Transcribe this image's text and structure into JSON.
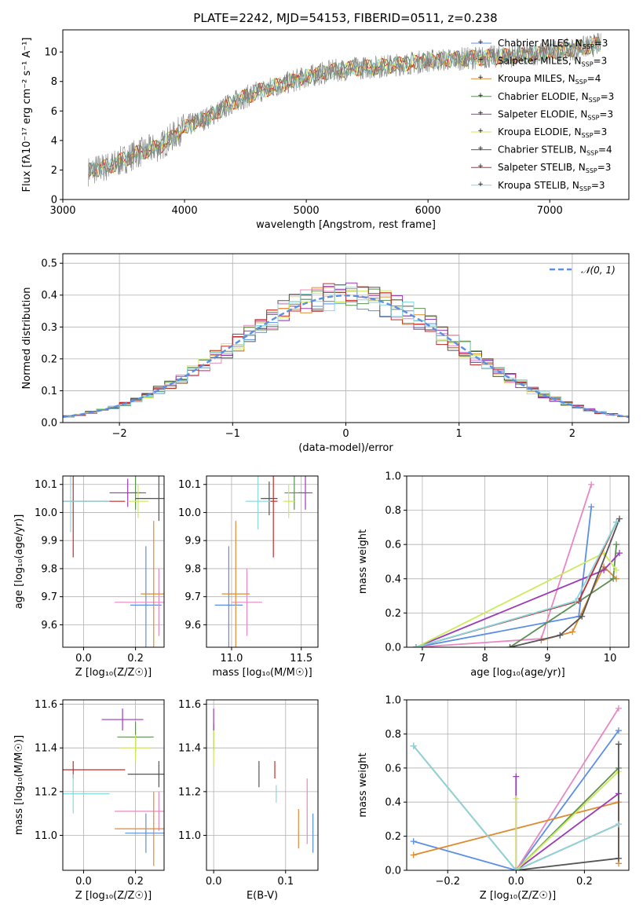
{
  "title": "PLATE=2242, MJD=54153, FIBERID=0511, z=0.238",
  "colors": {
    "chabrier_miles": "#5b8ee6",
    "salpeter_miles": "#e887c4",
    "kroupa_miles": "#e08a2e",
    "chabrier_elodie": "#5c8f52",
    "salpeter_elodie": "#9b3bb7",
    "kroupa_elodie": "#cdea5a",
    "chabrier_stelib": "#555555",
    "salpeter_stelib": "#c42b2b",
    "kroupa_stelib": "#86d9dd",
    "data": "#808080"
  },
  "legend": [
    {
      "label": "Chabrier MILES, N",
      "sub": "SSP",
      "tail": "=3",
      "color": "chabrier_miles"
    },
    {
      "label": "Salpeter MILES, N",
      "sub": "SSP",
      "tail": "=3",
      "color": "salpeter_miles"
    },
    {
      "label": "Kroupa MILES, N",
      "sub": "SSP",
      "tail": "=4",
      "color": "kroupa_miles"
    },
    {
      "label": "Chabrier ELODIE, N",
      "sub": "SSP",
      "tail": "=3",
      "color": "chabrier_elodie"
    },
    {
      "label": "Salpeter ELODIE, N",
      "sub": "SSP",
      "tail": "=3",
      "color": "salpeter_elodie"
    },
    {
      "label": "Kroupa ELODIE, N",
      "sub": "SSP",
      "tail": "=3",
      "color": "kroupa_elodie"
    },
    {
      "label": "Chabrier STELIB, N",
      "sub": "SSP",
      "tail": "=4",
      "color": "chabrier_stelib"
    },
    {
      "label": "Salpeter STELIB, N",
      "sub": "SSP",
      "tail": "=3",
      "color": "salpeter_stelib"
    },
    {
      "label": "Kroupa STELIB, N",
      "sub": "SSP",
      "tail": "=3",
      "color": "kroupa_stelib"
    }
  ],
  "chart_data": [
    {
      "type": "line",
      "title": "PLATE=2242, MJD=54153, FIBERID=0511, z=0.238",
      "xlabel": "wavelength [Angstrom, rest frame]",
      "ylabel": "Flux [fλ10⁻¹⁷ erg cm⁻² s⁻¹ A⁻¹]",
      "xlim": [
        3000,
        7650
      ],
      "ylim": [
        0,
        11.5
      ],
      "xticks": [
        "3000",
        "4000",
        "5000",
        "6000",
        "7000"
      ],
      "yticks": [
        "0",
        "2",
        "4",
        "6",
        "8",
        "10"
      ],
      "x": [
        3200,
        3400,
        3600,
        3800,
        4000,
        4200,
        4400,
        4600,
        4800,
        5000,
        5200,
        5400,
        5600,
        5800,
        6000,
        6200,
        6400,
        6600,
        6800,
        7000,
        7200,
        7400
      ],
      "y": [
        1.9,
        2.3,
        3.1,
        3.6,
        4.9,
        5.6,
        6.6,
        7.3,
        7.8,
        8.3,
        8.7,
        8.9,
        9.0,
        9.2,
        9.4,
        9.5,
        9.6,
        9.7,
        9.8,
        10.0,
        10.2,
        10.5
      ]
    },
    {
      "type": "line",
      "xlabel": "(data-model)/error",
      "ylabel": "Normed distribution",
      "xlim": [
        -2.5,
        2.5
      ],
      "ylim": [
        0,
        0.53
      ],
      "xticks": [
        "−2",
        "−1",
        "0",
        "1",
        "2"
      ],
      "yticks": [
        "0.0",
        "0.1",
        "0.2",
        "0.3",
        "0.4",
        "0.5"
      ],
      "legend": "𝒩(0, 1)",
      "x": [
        -2.5,
        -2.0,
        -1.5,
        -1.0,
        -0.5,
        0.0,
        0.5,
        1.0,
        1.5,
        2.0,
        2.5
      ],
      "gauss": [
        0.018,
        0.054,
        0.13,
        0.242,
        0.352,
        0.399,
        0.352,
        0.242,
        0.13,
        0.054,
        0.018
      ]
    },
    {
      "type": "scatter",
      "xlabel": "Z [log₁₀(Z/Z☉)]",
      "ylabel": "age  [log₁₀(age/yr)]",
      "xlim": [
        -0.08,
        0.31
      ],
      "ylim": [
        9.52,
        10.13
      ],
      "xticks": [
        "0.0",
        "0.2"
      ],
      "yticks": [
        "9.6",
        "9.7",
        "9.8",
        "9.9",
        "10.0",
        "10.1"
      ],
      "points": [
        {
          "x": 0.24,
          "y": 9.67,
          "xe": 0.06,
          "ye": 0.21,
          "c": "chabrier_miles"
        },
        {
          "x": 0.29,
          "y": 9.68,
          "xe": 0.17,
          "ye": 0.12,
          "c": "salpeter_miles"
        },
        {
          "x": 0.27,
          "y": 9.71,
          "xe": 0.05,
          "ye": 0.26,
          "c": "kroupa_miles"
        },
        {
          "x": 0.2,
          "y": 10.07,
          "xe": 0.02,
          "ye": 0.06,
          "c": "chabrier_elodie"
        },
        {
          "x": 0.17,
          "y": 10.07,
          "xe": 0.07,
          "ye": 0.05,
          "c": "salpeter_elodie"
        },
        {
          "x": 0.21,
          "y": 10.04,
          "xe": 0.04,
          "ye": 0.06,
          "c": "kroupa_elodie"
        },
        {
          "x": 0.29,
          "y": 10.05,
          "xe": 0.09,
          "ye": 0.08,
          "c": "chabrier_stelib"
        },
        {
          "x": -0.04,
          "y": 10.04,
          "xe": 0.2,
          "ye": 0.2,
          "c": "salpeter_stelib"
        },
        {
          "x": -0.05,
          "y": 10.04,
          "xe": 0.15,
          "ye": 0.11,
          "c": "kroupa_stelib"
        }
      ]
    },
    {
      "type": "scatter",
      "xlabel": "mass [log₁₀(M/M☉)]",
      "xlim": [
        10.82,
        11.62
      ],
      "ylim": [
        9.52,
        10.13
      ],
      "xticks": [
        "11.0",
        "11.5"
      ],
      "yticks": [
        "9.6",
        "9.7",
        "9.8",
        "9.9",
        "10.0",
        "10.1"
      ],
      "points": [
        {
          "x": 10.98,
          "y": 9.67,
          "xe": 0.1,
          "ye": 0.21,
          "c": "chabrier_miles"
        },
        {
          "x": 11.11,
          "y": 9.68,
          "xe": 0.11,
          "ye": 0.12,
          "c": "salpeter_miles"
        },
        {
          "x": 11.03,
          "y": 9.71,
          "xe": 0.1,
          "ye": 0.26,
          "c": "kroupa_miles"
        },
        {
          "x": 11.45,
          "y": 10.07,
          "xe": 0.07,
          "ye": 0.06,
          "c": "chabrier_elodie"
        },
        {
          "x": 11.53,
          "y": 10.07,
          "xe": 0.05,
          "ye": 0.06,
          "c": "salpeter_elodie"
        },
        {
          "x": 11.41,
          "y": 10.04,
          "xe": 0.04,
          "ye": 0.06,
          "c": "kroupa_elodie"
        },
        {
          "x": 11.27,
          "y": 10.05,
          "xe": 0.06,
          "ye": 0.06,
          "c": "chabrier_stelib"
        },
        {
          "x": 11.3,
          "y": 10.04,
          "xe": 0.03,
          "ye": 0.2,
          "c": "salpeter_stelib"
        },
        {
          "x": 11.19,
          "y": 10.04,
          "xe": 0.09,
          "ye": 0.1,
          "c": "kroupa_stelib"
        }
      ]
    },
    {
      "type": "line",
      "xlabel": "age  [log₁₀(age/yr)]",
      "ylabel": "mass weight",
      "xlim": [
        6.75,
        10.3
      ],
      "ylim": [
        0,
        1.0
      ],
      "xticks": [
        "7",
        "8",
        "9",
        "10"
      ],
      "yticks": [
        "0.0",
        "0.2",
        "0.4",
        "0.6",
        "0.8",
        "1.0"
      ],
      "series": [
        {
          "c": "chabrier_miles",
          "x": [
            6.9,
            9.5,
            9.7
          ],
          "y": [
            0.0,
            0.18,
            0.82
          ]
        },
        {
          "c": "salpeter_miles",
          "x": [
            6.9,
            8.9,
            9.7
          ],
          "y": [
            0.0,
            0.05,
            0.95
          ]
        },
        {
          "c": "kroupa_miles",
          "x": [
            8.9,
            9.4,
            9.9,
            10.1
          ],
          "y": [
            0.04,
            0.09,
            0.47,
            0.4
          ]
        },
        {
          "c": "chabrier_elodie",
          "x": [
            8.4,
            10.05,
            10.1
          ],
          "y": [
            0.0,
            0.4,
            0.6
          ]
        },
        {
          "c": "salpeter_elodie",
          "x": [
            6.9,
            9.9,
            10.15
          ],
          "y": [
            0.0,
            0.45,
            0.55
          ]
        },
        {
          "c": "kroupa_elodie",
          "x": [
            6.9,
            9.9,
            10.1
          ],
          "y": [
            0.0,
            0.55,
            0.45
          ]
        },
        {
          "c": "chabrier_stelib",
          "x": [
            8.4,
            9.2,
            9.55,
            10.15
          ],
          "y": [
            0.0,
            0.07,
            0.18,
            0.75
          ]
        },
        {
          "c": "salpeter_stelib",
          "x": [
            6.9,
            9.5,
            10.1
          ],
          "y": [
            0.0,
            0.27,
            0.73
          ]
        },
        {
          "c": "kroupa_stelib",
          "x": [
            6.9,
            9.45,
            10.1
          ],
          "y": [
            0.0,
            0.27,
            0.73
          ]
        }
      ]
    },
    {
      "type": "scatter",
      "xlabel": "Z [log₁₀(Z/Z☉)]",
      "ylabel": "mass [log₁₀(M/M☉)]",
      "xlim": [
        -0.08,
        0.31
      ],
      "ylim": [
        10.84,
        11.62
      ],
      "xticks": [
        "0.0",
        "0.2"
      ],
      "yticks": [
        "11.0",
        "11.2",
        "11.4",
        "11.6"
      ],
      "points": [
        {
          "x": 0.24,
          "y": 11.01,
          "xe": 0.08,
          "ye": 0.09,
          "c": "chabrier_miles"
        },
        {
          "x": 0.29,
          "y": 11.11,
          "xe": 0.17,
          "ye": 0.09,
          "c": "salpeter_miles"
        },
        {
          "x": 0.27,
          "y": 11.03,
          "xe": 0.15,
          "ye": 0.17,
          "c": "kroupa_miles"
        },
        {
          "x": 0.2,
          "y": 11.45,
          "xe": 0.07,
          "ye": 0.07,
          "c": "chabrier_elodie"
        },
        {
          "x": 0.15,
          "y": 11.53,
          "xe": 0.08,
          "ye": 0.05,
          "c": "salpeter_elodie"
        },
        {
          "x": 0.2,
          "y": 11.4,
          "xe": 0.06,
          "ye": 0.06,
          "c": "kroupa_elodie"
        },
        {
          "x": 0.29,
          "y": 11.28,
          "xe": 0.12,
          "ye": 0.06,
          "c": "chabrier_stelib"
        },
        {
          "x": -0.04,
          "y": 11.3,
          "xe": 0.2,
          "ye": 0.04,
          "c": "salpeter_stelib"
        },
        {
          "x": -0.04,
          "y": 11.19,
          "xe": 0.14,
          "ye": 0.09,
          "c": "kroupa_stelib"
        }
      ]
    },
    {
      "type": "scatter",
      "xlabel": "E(B-V)",
      "xlim": [
        -0.01,
        0.145
      ],
      "ylim": [
        10.84,
        11.62
      ],
      "xticks": [
        "0.0",
        "0.1"
      ],
      "yticks": [
        "11.0",
        "11.2",
        "11.4",
        "11.6"
      ],
      "points": [
        {
          "x": 0.138,
          "y": 11.01,
          "xe": 0.0,
          "ye": 0.09,
          "c": "chabrier_miles"
        },
        {
          "x": 0.13,
          "y": 11.11,
          "xe": 0.0,
          "ye": 0.15,
          "c": "salpeter_miles"
        },
        {
          "x": 0.118,
          "y": 11.03,
          "xe": 0.0,
          "ye": 0.09,
          "c": "kroupa_miles"
        },
        {
          "x": 0.0,
          "y": 11.45,
          "xe": 0.0,
          "ye": 0.06,
          "c": "chabrier_elodie"
        },
        {
          "x": 0.0,
          "y": 11.53,
          "xe": 0.0,
          "ye": 0.05,
          "c": "salpeter_elodie"
        },
        {
          "x": 0.0,
          "y": 11.4,
          "xe": 0.0,
          "ye": 0.08,
          "c": "kroupa_elodie"
        },
        {
          "x": 0.063,
          "y": 11.28,
          "xe": 0.0,
          "ye": 0.06,
          "c": "chabrier_stelib"
        },
        {
          "x": 0.085,
          "y": 11.3,
          "xe": 0.0,
          "ye": 0.04,
          "c": "salpeter_stelib"
        },
        {
          "x": 0.087,
          "y": 11.19,
          "xe": 0.0,
          "ye": 0.04,
          "c": "kroupa_stelib"
        }
      ]
    },
    {
      "type": "line",
      "xlabel": "Z [log₁₀(Z/Z☉)]",
      "ylabel": "mass weight",
      "xlim": [
        -0.32,
        0.33
      ],
      "ylim": [
        0,
        1.0
      ],
      "xticks": [
        "−0.2",
        "0.0",
        "0.2"
      ],
      "yticks": [
        "0.0",
        "0.2",
        "0.4",
        "0.6",
        "0.8",
        "1.0"
      ],
      "series": [
        {
          "c": "chabrier_miles",
          "x": [
            -0.3,
            0.0,
            0.3
          ],
          "y": [
            0.17,
            0.0,
            0.82
          ]
        },
        {
          "c": "salpeter_miles",
          "x": [
            0.0,
            0.3
          ],
          "y": [
            0.0,
            0.95
          ]
        },
        {
          "c": "kroupa_miles",
          "x": [
            -0.3,
            0.3,
            0.3
          ],
          "y": [
            0.09,
            0.4,
            0.04
          ]
        },
        {
          "c": "chabrier_elodie",
          "x": [
            0.0,
            0.3
          ],
          "y": [
            0.0,
            0.6
          ]
        },
        {
          "c": "salpeter_elodie",
          "x": [
            0.0,
            0.0,
            0.3
          ],
          "y": [
            0.55,
            0.0,
            0.45
          ]
        },
        {
          "c": "kroupa_elodie",
          "x": [
            0.0,
            0.0,
            0.3
          ],
          "y": [
            0.42,
            0.0,
            0.58
          ]
        },
        {
          "c": "chabrier_stelib",
          "x": [
            0.0,
            0.3,
            0.3
          ],
          "y": [
            0.0,
            0.07,
            0.74
          ]
        },
        {
          "c": "salpeter_stelib",
          "x": [
            -0.3,
            0.0,
            0.3
          ],
          "y": [
            0.73,
            0.0,
            0.27
          ]
        },
        {
          "c": "kroupa_stelib",
          "x": [
            -0.3,
            0.0,
            0.3
          ],
          "y": [
            0.73,
            0.0,
            0.27
          ]
        }
      ]
    }
  ]
}
